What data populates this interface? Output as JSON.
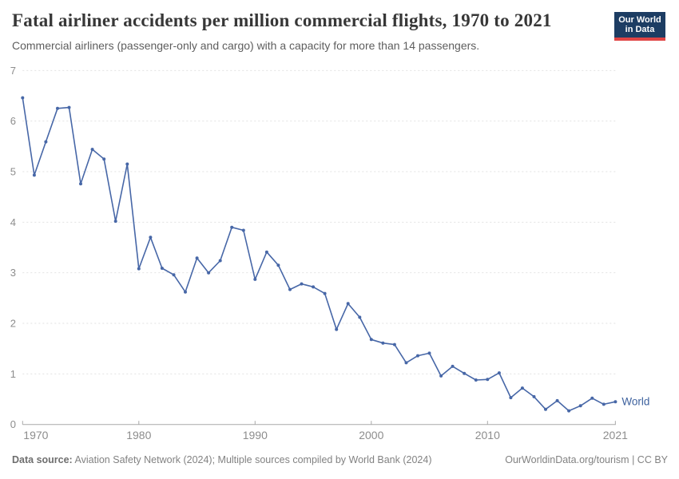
{
  "header": {
    "title": "Fatal airliner accidents per million commercial flights, 1970 to 2021",
    "subtitle": "Commercial airliners (passenger-only and cargo) with a capacity for more than 14 passengers.",
    "logo": {
      "line1": "Our World",
      "line2": "in Data"
    }
  },
  "chart_data": {
    "type": "line",
    "title": "Fatal airliner accidents per million commercial flights, 1970 to 2021",
    "subtitle": "Commercial airliners (passenger-only and cargo) with a capacity for more than 14 passengers.",
    "xlabel": "",
    "ylabel": "",
    "xlim": [
      1970,
      2021
    ],
    "ylim": [
      0,
      7
    ],
    "x_ticks": [
      1970,
      1980,
      1990,
      2000,
      2010,
      2021
    ],
    "y_ticks": [
      0,
      1,
      2,
      3,
      4,
      5,
      6,
      7
    ],
    "grid": "horizontal-dashed",
    "legend_position": "end-of-line-label",
    "series": [
      {
        "name": "World",
        "color": "#4767a7",
        "years": [
          1970,
          1971,
          1972,
          1973,
          1974,
          1975,
          1976,
          1977,
          1978,
          1979,
          1980,
          1981,
          1982,
          1983,
          1984,
          1985,
          1986,
          1987,
          1988,
          1989,
          1990,
          1991,
          1992,
          1993,
          1994,
          1995,
          1996,
          1997,
          1998,
          1999,
          2000,
          2001,
          2002,
          2003,
          2004,
          2005,
          2006,
          2007,
          2008,
          2009,
          2010,
          2011,
          2012,
          2013,
          2014,
          2015,
          2016,
          2017,
          2018,
          2019,
          2020,
          2021
        ],
        "values": [
          6.46,
          4.93,
          5.59,
          6.25,
          6.27,
          4.76,
          5.44,
          5.25,
          4.02,
          5.15,
          3.08,
          3.7,
          3.09,
          2.96,
          2.62,
          3.29,
          3.0,
          3.24,
          3.9,
          3.84,
          2.87,
          3.41,
          3.15,
          2.67,
          2.78,
          2.72,
          2.59,
          1.88,
          2.39,
          2.12,
          1.68,
          1.61,
          1.58,
          1.22,
          1.36,
          1.41,
          0.96,
          1.15,
          1.01,
          0.88,
          0.89,
          1.02,
          0.53,
          0.72,
          0.55,
          0.3,
          0.47,
          0.27,
          0.37,
          0.52,
          0.4,
          0.45
        ]
      }
    ]
  },
  "footer": {
    "source_label": "Data source:",
    "source_text": " Aviation Safety Network (2024); Multiple sources compiled by World Bank (2024)",
    "credit": "OurWorldinData.org/tourism | CC BY"
  },
  "colors": {
    "line": "#4767a7",
    "series_label": "#3d619e",
    "grid": "#e2e2e2",
    "axis": "#a8a8a8",
    "tick_text": "#8d8d8d",
    "title": "#373737",
    "subtitle": "#5e5e5e",
    "footer": "#828282",
    "logo_bg": "#1d3d63",
    "logo_red": "#e04444"
  }
}
